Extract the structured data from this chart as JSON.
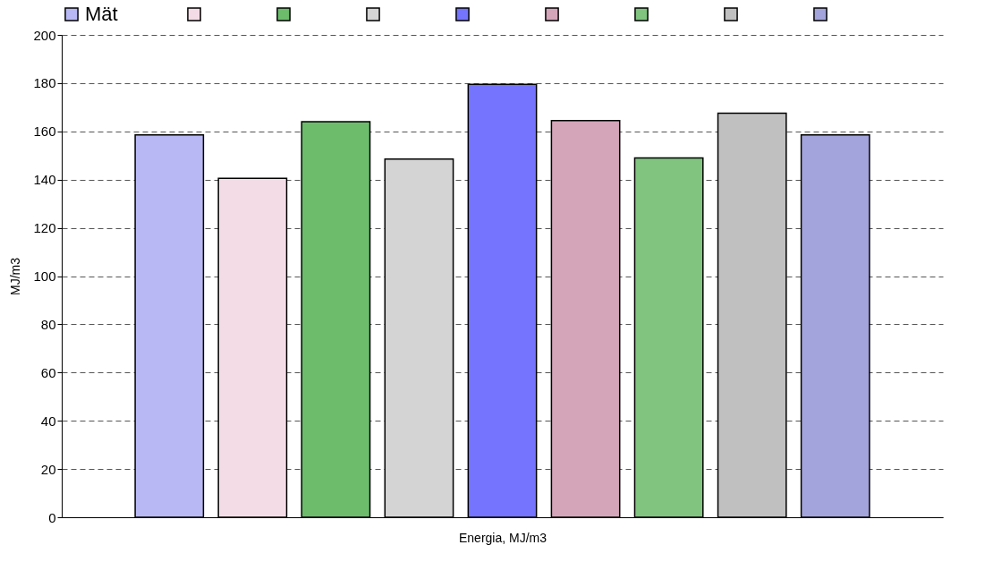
{
  "chart_data": {
    "type": "bar",
    "xlabel": "Energia, MJ/m3",
    "ylabel": "MJ/m3",
    "categories": [
      null
    ],
    "series": [
      {
        "name": "Mät",
        "color": "#b8b8f4",
        "values": [
          158.5
        ]
      },
      {
        "color": "#f4dce6",
        "values": [
          140.5
        ]
      },
      {
        "color": "#6cbc6c",
        "values": [
          164
        ]
      },
      {
        "color": "#d4d4d4",
        "values": [
          148.5
        ]
      },
      {
        "color": "#7474ff",
        "values": [
          179.5
        ]
      },
      {
        "color": "#d4a4b8",
        "values": [
          164.5
        ]
      },
      {
        "color": "#80c480",
        "values": [
          149
        ]
      },
      {
        "color": "#c0c0c0",
        "values": [
          167.5
        ]
      },
      {
        "color": "#a4a4dc",
        "values": [
          158.5
        ]
      }
    ],
    "ylim": [
      0,
      200
    ],
    "yticks": [
      0,
      20,
      40,
      60,
      80,
      100,
      120,
      140,
      160,
      180,
      200
    ],
    "grid": "y",
    "legend": "top"
  }
}
